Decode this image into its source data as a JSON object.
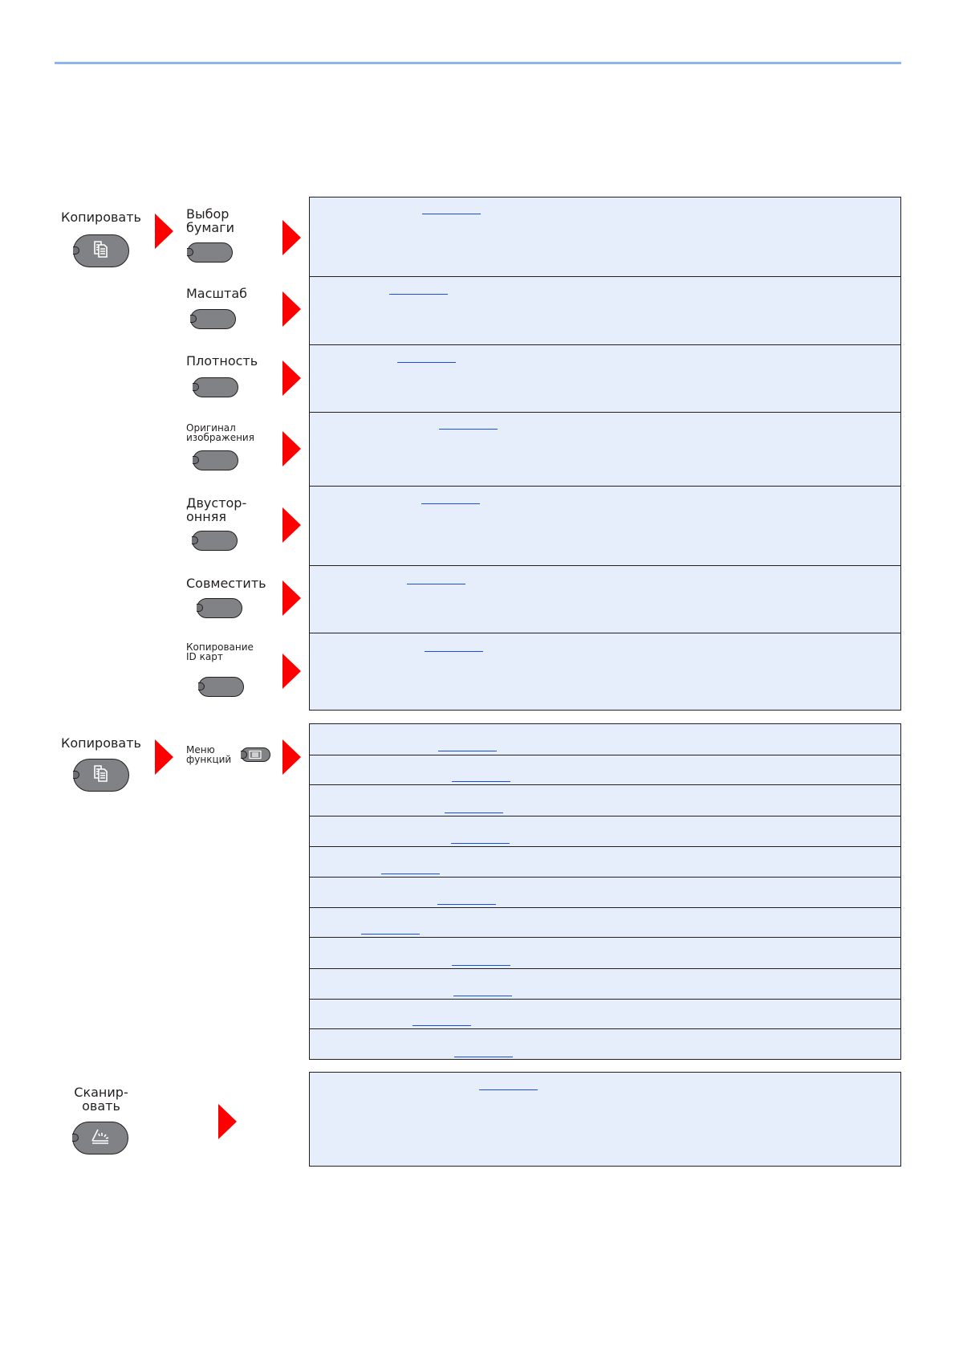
{
  "colors": {
    "accent_rule": "#8db4ee",
    "box_fill": "#e6edfb",
    "arrow": "#ff0000",
    "button": "#818285",
    "link": "#1a4fe0"
  },
  "copy_section": {
    "key_label": "Копировать",
    "key_icon": "copy-icon",
    "functions": [
      {
        "label": "Выбор\nбумаги"
      },
      {
        "label": "Масштаб"
      },
      {
        "label": "Плотность"
      },
      {
        "label": "Оригинал\nизображения"
      },
      {
        "label": "Двустор-\nонняя"
      },
      {
        "label": "Совместить"
      },
      {
        "label": "Копирование\nID карт"
      }
    ]
  },
  "menu_section": {
    "key_label": "Копировать",
    "key_icon": "copy-icon",
    "menu_label": "Меню\nфункций",
    "menu_icon": "list-icon",
    "row_count": 11
  },
  "scan_section": {
    "key_label": "Сканир-\nовать",
    "key_icon": "scanner-icon"
  }
}
